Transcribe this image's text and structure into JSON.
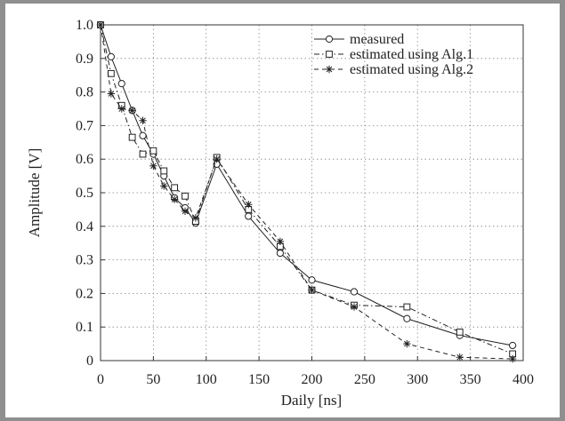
{
  "colors": {
    "frame": "#8f8f8f",
    "plot": "#ffffff",
    "ink": "#222222"
  },
  "chart_data": {
    "type": "line",
    "xlabel": "Daily [ns]",
    "ylabel": "Amplitude [V]",
    "xlim": [
      0,
      400
    ],
    "ylim": [
      0,
      1.0
    ],
    "xticks": [
      "0",
      "50",
      "100",
      "150",
      "200",
      "250",
      "300",
      "350",
      "400"
    ],
    "yticks": [
      "0",
      "0.1",
      "0.2",
      "0.3",
      "0.4",
      "0.5",
      "0.6",
      "0.7",
      "0.8",
      "0.9",
      "1.0"
    ],
    "grid": "dotted",
    "legend": "top-right",
    "series": [
      {
        "name": "measured",
        "marker": "circle",
        "line": "solid",
        "x": [
          0,
          10,
          20,
          30,
          40,
          50,
          60,
          70,
          80,
          90,
          110,
          140,
          170,
          200,
          240,
          290,
          340,
          390
        ],
        "y": [
          1.0,
          0.905,
          0.825,
          0.745,
          0.67,
          0.615,
          0.55,
          0.485,
          0.455,
          0.41,
          0.585,
          0.43,
          0.32,
          0.24,
          0.205,
          0.125,
          0.075,
          0.045
        ]
      },
      {
        "name": "estimated using Alg.1",
        "marker": "square",
        "line": "dashdot",
        "x": [
          0,
          10,
          20,
          30,
          40,
          50,
          60,
          70,
          80,
          90,
          110,
          140,
          170,
          200,
          240,
          290,
          340,
          390
        ],
        "y": [
          1.0,
          0.855,
          0.76,
          0.665,
          0.615,
          0.625,
          0.565,
          0.515,
          0.49,
          0.415,
          0.605,
          0.45,
          0.34,
          0.21,
          0.165,
          0.16,
          0.085,
          0.02
        ]
      },
      {
        "name": "estimated using Alg.2",
        "marker": "star",
        "line": "dashed",
        "x": [
          0,
          10,
          20,
          30,
          40,
          50,
          60,
          70,
          80,
          90,
          110,
          140,
          170,
          200,
          240,
          290,
          340,
          390
        ],
        "y": [
          1.0,
          0.795,
          0.75,
          0.745,
          0.715,
          0.58,
          0.52,
          0.48,
          0.445,
          0.425,
          0.6,
          0.465,
          0.355,
          0.21,
          0.16,
          0.05,
          0.01,
          0.005
        ]
      }
    ]
  }
}
